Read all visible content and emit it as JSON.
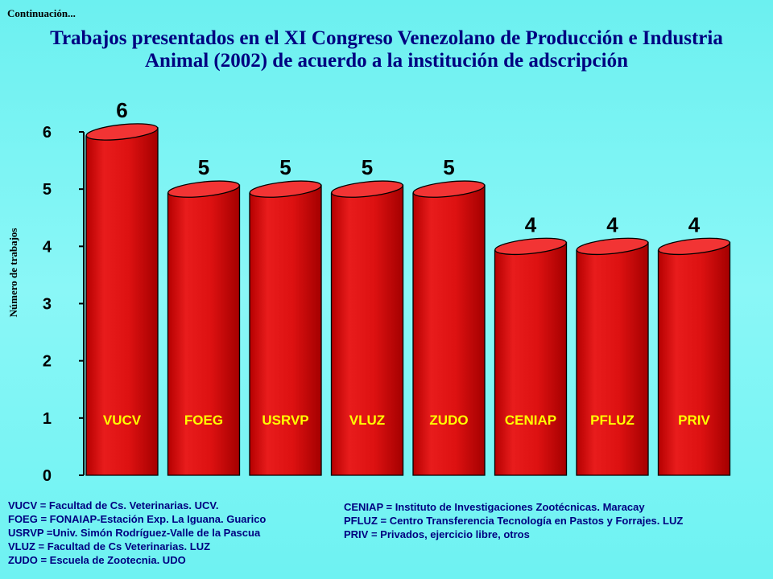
{
  "header": {
    "continuation": "Continuación...",
    "title_line1": "Trabajos presentados en el XI Congreso Venezolano de Producción e Industria",
    "title_line2": "Animal (2002) de acuerdo a la institución de adscripción"
  },
  "chart_data": {
    "type": "bar",
    "title": "Trabajos presentados en el XI Congreso Venezolano de Producción e Industria Animal (2002) de acuerdo a la institución de adscripción",
    "ylabel": "Número de trabajos",
    "xlabel": "",
    "categories": [
      "VUCV",
      "FOEG",
      "USRVP",
      "VLUZ",
      "ZUDO",
      "CENIAP",
      "PFLUZ",
      "PRIV"
    ],
    "values": [
      6,
      5,
      5,
      5,
      5,
      4,
      4,
      4
    ],
    "ylim": [
      0,
      6
    ],
    "yticks": [
      "0",
      "1",
      "2",
      "3",
      "4",
      "5",
      "6"
    ],
    "bar_style": "cylinder",
    "grid": false,
    "colors": {
      "bar": "#dd1111",
      "bar_top": "#f23434",
      "category_label": "#ffff00",
      "title": "#000080"
    }
  },
  "legend": {
    "left": [
      "VUCV = Facultad de Cs. Veterinarias. UCV.",
      "FOEG = FONAIAP-Estación Exp. La Iguana. Guarico",
      "USRVP =Univ. Simón Rodríguez-Valle de la Pascua",
      "VLUZ = Facultad de Cs Veterinarias. LUZ",
      "ZUDO = Escuela de Zootecnia. UDO"
    ],
    "right": [
      "CENIAP = Instituto de Investigaciones Zootécnicas. Maracay",
      "PFLUZ = Centro Transferencia Tecnología en Pastos y Forrajes. LUZ",
      "PRIV = Privados, ejercicio libre, otros"
    ]
  }
}
